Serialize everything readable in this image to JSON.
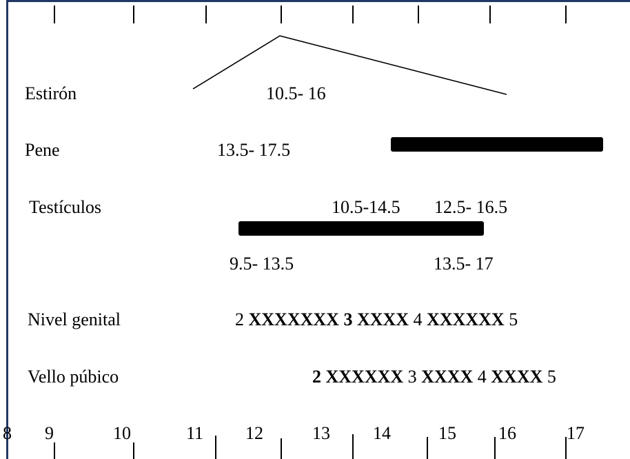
{
  "colors": {
    "frame": "#203864",
    "ink": "#000000"
  },
  "rows": {
    "estiron": {
      "label": "Estirón",
      "range": "10.5- 16"
    },
    "pene": {
      "label": "Pene",
      "range_left": "13.5- 17.5"
    },
    "testiculos": {
      "label": "Testículos",
      "range_a": "10.5-14.5",
      "range_b": "12.5- 16.5",
      "range_c": "9.5- 13.5",
      "range_d": "13.5- 17"
    },
    "nivel_genital": {
      "label": "Nivel genital",
      "s1": "2",
      "x1": "XXXXXXX",
      "s2": "3",
      "x2": "XXXX",
      "s3": "4",
      "x3": "XXXXXX",
      "s4": "5"
    },
    "vello_pubico": {
      "label": "Vello púbico",
      "s1": "2",
      "x1": "XXXXXX",
      "s2": "3",
      "x2": "XXXX",
      "s3": "4",
      "x3": "XXXX",
      "s4": "5"
    }
  },
  "axis": {
    "ticks": [
      "8",
      "9",
      "10",
      "11",
      "12",
      "13",
      "14",
      "15",
      "16",
      "17"
    ]
  }
}
